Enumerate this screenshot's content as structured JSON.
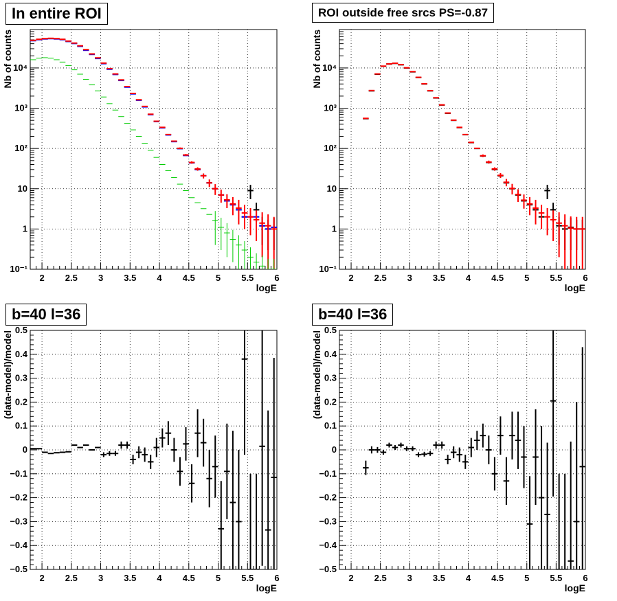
{
  "chart_data": [
    {
      "type": "scatter",
      "title": "In entire ROI",
      "xlabel": "logE",
      "ylabel": "Nb of counts",
      "xlim": [
        1.8,
        6.0
      ],
      "ylim": [
        0.1,
        90000
      ],
      "yscale": "log",
      "grid": true,
      "xticks": [
        2,
        2.5,
        3,
        3.5,
        4,
        4.5,
        5,
        5.5,
        6
      ],
      "xtick_labels": [
        "2",
        "2.5",
        "3",
        "3.5",
        "4",
        "4.5",
        "5",
        "5.5",
        "6"
      ],
      "yticks": [
        0.1,
        1,
        10,
        100,
        1000,
        10000
      ],
      "ytick_labels": [
        "10⁻¹",
        "1",
        "10",
        "10²",
        "10³",
        "10⁴"
      ],
      "x": [
        1.85,
        1.95,
        2.05,
        2.15,
        2.25,
        2.35,
        2.45,
        2.55,
        2.65,
        2.75,
        2.85,
        2.95,
        3.05,
        3.15,
        3.25,
        3.35,
        3.45,
        3.55,
        3.65,
        3.75,
        3.85,
        3.95,
        4.05,
        4.15,
        4.25,
        4.35,
        4.45,
        4.55,
        4.65,
        4.75,
        4.85,
        4.95,
        5.05,
        5.15,
        5.25,
        5.35,
        5.45,
        5.55,
        5.65,
        5.75,
        5.85,
        5.95
      ],
      "series": [
        {
          "color": "#000000",
          "values": [
            48000,
            51000,
            53000,
            54000,
            53000,
            51000,
            46000,
            41000,
            35000,
            28000,
            22000,
            17500,
            13000,
            9500,
            7000,
            5000,
            3400,
            2300,
            1600,
            1100,
            700,
            470,
            330,
            220,
            150,
            100,
            68,
            44,
            30,
            21,
            14,
            10,
            7,
            5,
            4,
            3,
            2,
            9,
            3,
            1.2,
            1,
            1.1
          ],
          "err": [
            0,
            0,
            0,
            0,
            0,
            0,
            0,
            0,
            0,
            0,
            0,
            0,
            0,
            0,
            0,
            0,
            0,
            0,
            0,
            0,
            0,
            0,
            0,
            0,
            0,
            0,
            0,
            0,
            0,
            0,
            0,
            0,
            0,
            0,
            0,
            0,
            0,
            3.5,
            1.5,
            0.8,
            0.7,
            0.8
          ]
        },
        {
          "color": "#0000ff",
          "values": [
            47500,
            50500,
            52500,
            53500,
            52500,
            50500,
            45500,
            40500,
            34500,
            27500,
            21700,
            17200,
            12800,
            9300,
            6900,
            4900,
            3350,
            2270,
            1580,
            1080,
            690,
            465,
            325,
            217,
            148,
            99,
            67,
            44,
            30,
            21,
            14,
            10,
            7,
            5,
            4,
            3,
            2,
            2,
            2,
            1.2,
            1,
            1.1
          ],
          "err": [
            0,
            0,
            0,
            0,
            0,
            0,
            0,
            0,
            0,
            0,
            0,
            0,
            0,
            0,
            0,
            0,
            0,
            0,
            0,
            0,
            0,
            0,
            0,
            0,
            0,
            0,
            0,
            0,
            0,
            0,
            0,
            0,
            0,
            0,
            0,
            0,
            0,
            0,
            0,
            0,
            0,
            0
          ]
        },
        {
          "color": "#ff0000",
          "values": [
            48500,
            51500,
            53500,
            54500,
            53500,
            51500,
            46500,
            41500,
            35500,
            28500,
            22300,
            17800,
            13200,
            9600,
            7100,
            5050,
            3450,
            2330,
            1620,
            1110,
            710,
            475,
            335,
            222,
            152,
            101,
            69,
            45,
            31,
            21,
            14,
            10,
            7,
            5.3,
            4.2,
            3.3,
            2.5,
            2,
            1.7,
            1.4,
            1.2,
            1
          ],
          "err": [
            0,
            0,
            0,
            0,
            0,
            0,
            0,
            0,
            0,
            0,
            0,
            0,
            0,
            0,
            0,
            0,
            0,
            0,
            0,
            0,
            0,
            0,
            0,
            0,
            5,
            5,
            4,
            3,
            3,
            3,
            3,
            3,
            2.5,
            2,
            2,
            2,
            1.5,
            1.3,
            1.2,
            1.2,
            1.1,
            1
          ]
        },
        {
          "color": "#00cc00",
          "values": [
            16000,
            17500,
            18000,
            17500,
            16000,
            14000,
            11500,
            9000,
            7000,
            5200,
            3800,
            2700,
            1900,
            1300,
            900,
            620,
            420,
            290,
            200,
            135,
            90,
            60,
            40,
            28,
            19,
            13,
            9,
            6,
            4.5,
            3.2,
            2.3,
            1.6,
            1.1,
            0.8,
            0.55,
            0.4,
            0.3,
            0.2,
            0.15,
            0.12,
            0.1,
            0.1
          ],
          "err": [
            0,
            0,
            0,
            0,
            0,
            0,
            0,
            0,
            0,
            0,
            0,
            0,
            0,
            0,
            0,
            0,
            0,
            0,
            0,
            0,
            0,
            0,
            0,
            0,
            0,
            0,
            0,
            0,
            0,
            0,
            0,
            1.2,
            0.8,
            0.6,
            0.4,
            0.3,
            0.2,
            0.15,
            0.1,
            0.1,
            0.08,
            0.08
          ]
        }
      ]
    },
    {
      "type": "scatter",
      "title": "ROI outside free srcs PS=-0.87",
      "xlabel": "logE",
      "ylabel": "Nb of counts",
      "xlim": [
        1.8,
        6.0
      ],
      "ylim": [
        0.1,
        90000
      ],
      "yscale": "log",
      "grid": true,
      "xticks": [
        2,
        2.5,
        3,
        3.5,
        4,
        4.5,
        5,
        5.5,
        6
      ],
      "xtick_labels": [
        "2",
        "2.5",
        "3",
        "3.5",
        "4",
        "4.5",
        "5",
        "5.5",
        "6"
      ],
      "yticks": [
        0.1,
        1,
        10,
        100,
        1000,
        10000
      ],
      "ytick_labels": [
        "10⁻¹",
        "1",
        "10",
        "10²",
        "10³",
        "10⁴"
      ],
      "x": [
        2.25,
        2.35,
        2.45,
        2.55,
        2.65,
        2.75,
        2.85,
        2.95,
        3.05,
        3.15,
        3.25,
        3.35,
        3.45,
        3.55,
        3.65,
        3.75,
        3.85,
        3.95,
        4.05,
        4.15,
        4.25,
        4.35,
        4.45,
        4.55,
        4.65,
        4.75,
        4.85,
        4.95,
        5.05,
        5.15,
        5.25,
        5.35,
        5.45,
        5.55,
        5.65,
        5.75,
        5.85,
        5.95
      ],
      "series": [
        {
          "color": "#000000",
          "values": [
            550,
            2700,
            7000,
            11000,
            12500,
            13000,
            12000,
            10000,
            8000,
            5800,
            4000,
            2700,
            1800,
            1200,
            750,
            500,
            330,
            220,
            140,
            100,
            65,
            45,
            30,
            21,
            14,
            10,
            7,
            5,
            4,
            3,
            2,
            9,
            3,
            1.2,
            1,
            1.1,
            1,
            1
          ],
          "err": [
            0,
            0,
            0,
            0,
            0,
            0,
            0,
            0,
            0,
            0,
            0,
            0,
            0,
            0,
            0,
            0,
            0,
            0,
            0,
            0,
            0,
            0,
            0,
            0,
            0,
            0,
            0,
            0,
            0,
            0,
            0,
            3.5,
            1.5,
            0.8,
            0.7,
            0.8,
            0.7,
            0.7
          ]
        },
        {
          "color": "#ff0000",
          "values": [
            560,
            2750,
            7100,
            11100,
            12600,
            13100,
            12100,
            10100,
            8100,
            5850,
            4050,
            2730,
            1820,
            1210,
            760,
            505,
            335,
            222,
            142,
            101,
            66,
            46,
            31,
            21.5,
            14.5,
            10.2,
            7.2,
            5.2,
            4.2,
            3.3,
            2.5,
            2,
            1.7,
            1.4,
            1.2,
            1.05,
            1,
            1
          ],
          "err": [
            0,
            0,
            0,
            0,
            0,
            0,
            0,
            0,
            0,
            0,
            0,
            0,
            0,
            0,
            0,
            0,
            0,
            0,
            0,
            0,
            5,
            4,
            3,
            3,
            3,
            3,
            2.5,
            2,
            2,
            2,
            1.5,
            1.3,
            1.2,
            1.2,
            1.1,
            1,
            1,
            1
          ]
        }
      ]
    },
    {
      "type": "scatter",
      "title": "b=40 l=36",
      "xlabel": "logE",
      "ylabel": "(data-model)/model",
      "xlim": [
        1.8,
        6.0
      ],
      "ylim": [
        -0.5,
        0.5
      ],
      "grid": true,
      "xticks": [
        2,
        2.5,
        3,
        3.5,
        4,
        4.5,
        5,
        5.5,
        6
      ],
      "xtick_labels": [
        "2",
        "2.5",
        "3",
        "3.5",
        "4",
        "4.5",
        "5",
        "5.5",
        "6"
      ],
      "yticks": [
        -0.5,
        -0.4,
        -0.3,
        -0.2,
        -0.1,
        0,
        0.1,
        0.2,
        0.3,
        0.4,
        0.5
      ],
      "ytick_labels": [
        "−0.5",
        "−0.4",
        "−0.3",
        "−0.2",
        "−0.1",
        "0",
        "0.1",
        "0.2",
        "0.3",
        "0.4",
        "0.5"
      ],
      "x": [
        1.85,
        1.95,
        2.05,
        2.15,
        2.25,
        2.35,
        2.45,
        2.55,
        2.65,
        2.75,
        2.85,
        2.95,
        3.05,
        3.15,
        3.25,
        3.35,
        3.45,
        3.55,
        3.65,
        3.75,
        3.85,
        3.95,
        4.05,
        4.15,
        4.25,
        4.35,
        4.45,
        4.55,
        4.65,
        4.75,
        4.85,
        4.95,
        5.05,
        5.15,
        5.25,
        5.35,
        5.45,
        5.55,
        5.65,
        5.75,
        5.85,
        5.95
      ],
      "series": [
        {
          "color": "#000000",
          "values": [
            0.005,
            0.005,
            -0.01,
            -0.015,
            -0.012,
            -0.01,
            -0.008,
            0.02,
            0.01,
            0.02,
            0.0,
            0.01,
            -0.02,
            -0.015,
            -0.015,
            0.02,
            0.02,
            -0.04,
            -0.01,
            -0.02,
            -0.05,
            0.01,
            0.05,
            0.07,
            0.0,
            -0.09,
            0.025,
            -0.14,
            0.07,
            0.03,
            -0.12,
            -0.07,
            -0.33,
            -0.09,
            -0.22,
            -0.3,
            0.38,
            -0.5,
            -0.5,
            0.015,
            -0.335,
            -0.115
          ],
          "err": [
            0,
            0,
            0,
            0,
            0,
            0,
            0,
            0,
            0,
            0,
            0,
            0,
            0.01,
            0.01,
            0.01,
            0.015,
            0.015,
            0.02,
            0.025,
            0.03,
            0.03,
            0.04,
            0.04,
            0.05,
            0.05,
            0.06,
            0.07,
            0.08,
            0.1,
            0.1,
            0.12,
            0.13,
            0.2,
            0.2,
            0.3,
            0.3,
            0.4,
            0.4,
            0.4,
            0.5,
            0.5,
            0.5
          ]
        }
      ]
    },
    {
      "type": "scatter",
      "title": "b=40 l=36",
      "xlabel": "logE",
      "ylabel": "(data-model)/model",
      "xlim": [
        1.8,
        6.0
      ],
      "ylim": [
        -0.5,
        0.5
      ],
      "grid": true,
      "xticks": [
        2,
        2.5,
        3,
        3.5,
        4,
        4.5,
        5,
        5.5,
        6
      ],
      "xtick_labels": [
        "2",
        "2.5",
        "3",
        "3.5",
        "4",
        "4.5",
        "5",
        "5.5",
        "6"
      ],
      "yticks": [
        -0.5,
        -0.4,
        -0.3,
        -0.2,
        -0.1,
        0,
        0.1,
        0.2,
        0.3,
        0.4,
        0.5
      ],
      "ytick_labels": [
        "−0.5",
        "−0.4",
        "−0.3",
        "−0.2",
        "−0.1",
        "0",
        "0.1",
        "0.2",
        "0.3",
        "0.4",
        "0.5"
      ],
      "x": [
        2.25,
        2.35,
        2.45,
        2.55,
        2.65,
        2.75,
        2.85,
        2.95,
        3.05,
        3.15,
        3.25,
        3.35,
        3.45,
        3.55,
        3.65,
        3.75,
        3.85,
        3.95,
        4.05,
        4.15,
        4.25,
        4.35,
        4.45,
        4.55,
        4.65,
        4.75,
        4.85,
        4.95,
        5.05,
        5.15,
        5.25,
        5.35,
        5.45,
        5.55,
        5.65,
        5.75,
        5.85,
        5.95
      ],
      "series": [
        {
          "color": "#000000",
          "values": [
            -0.075,
            0.0,
            0.0,
            -0.01,
            0.02,
            0.01,
            0.02,
            0.005,
            0.005,
            -0.02,
            -0.018,
            -0.015,
            0.02,
            0.02,
            -0.04,
            -0.01,
            -0.02,
            -0.05,
            0.01,
            0.04,
            0.06,
            0.0,
            -0.1,
            0.06,
            -0.13,
            0.06,
            0.04,
            -0.03,
            -0.31,
            -0.03,
            -0.2,
            -0.27,
            0.205,
            -0.5,
            -0.5,
            -0.465,
            -0.3,
            -0.07
          ],
          "err": [
            0.03,
            0.015,
            0.012,
            0.01,
            0.01,
            0.01,
            0.01,
            0.01,
            0.01,
            0.01,
            0.01,
            0.01,
            0.015,
            0.015,
            0.02,
            0.025,
            0.03,
            0.03,
            0.04,
            0.04,
            0.05,
            0.06,
            0.07,
            0.08,
            0.1,
            0.1,
            0.12,
            0.13,
            0.2,
            0.2,
            0.3,
            0.3,
            0.4,
            0.4,
            0.4,
            0.5,
            0.5,
            0.5
          ]
        }
      ]
    }
  ]
}
